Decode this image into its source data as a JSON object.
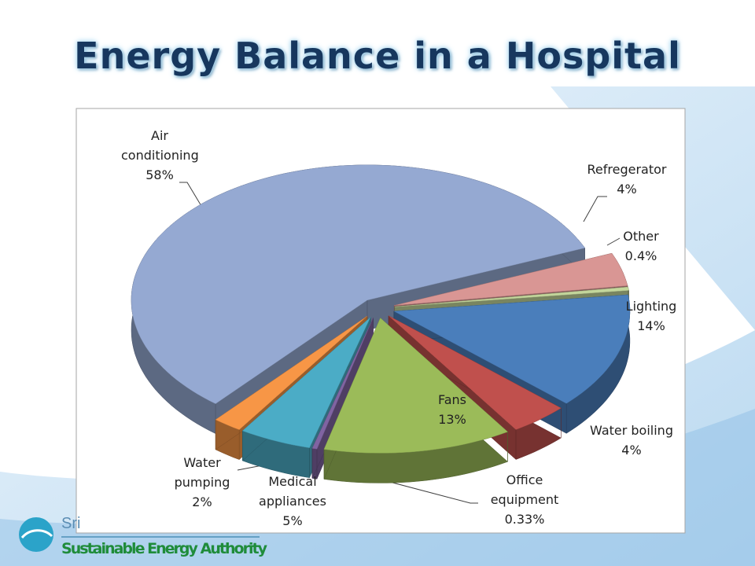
{
  "chart_data": {
    "type": "pie",
    "title": "Energy Balance in a Hospital",
    "categories": [
      "Air conditioning",
      "Refregerator",
      "Other",
      "Lighting",
      "Water boiling",
      "Fans",
      "Office equipment",
      "Medical appliances",
      "Water pumping"
    ],
    "values": [
      58,
      4,
      0.4,
      14,
      4,
      13,
      0.33,
      5,
      2
    ],
    "value_labels": [
      "58%",
      "4%",
      "0.4%",
      "14%",
      "4%",
      "13%",
      "0.33%",
      "5%",
      "2%"
    ],
    "colors": [
      "#95a9d2",
      "#d99694",
      "#c3d69b",
      "#4a7ebb",
      "#c0504d",
      "#9bbb59",
      "#8064a2",
      "#4bacc6",
      "#f79646"
    ]
  },
  "footer": {
    "logo_text": "Sri",
    "organization": "Sustainable Energy Authority"
  }
}
